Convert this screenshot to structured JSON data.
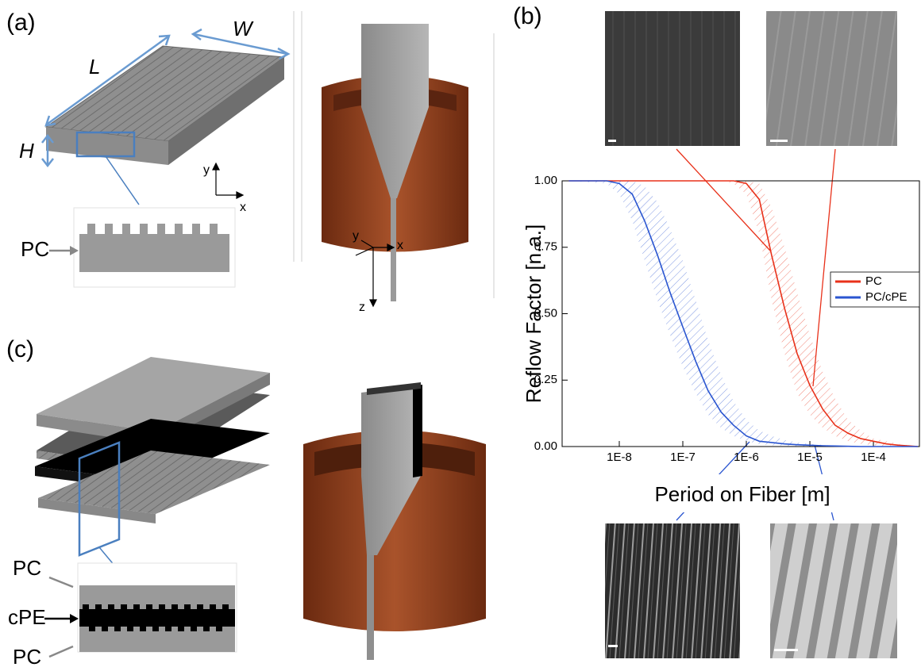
{
  "chart_data": {
    "type": "line",
    "y_label": "Reflow Factor [n.a.]",
    "x_label": "Period on Fiber [m]",
    "log_x": true,
    "x": [
      1.6e-09,
      6.3e-09,
      1e-08,
      1.6e-08,
      2.5e-08,
      4e-08,
      6.3e-08,
      1e-07,
      1.6e-07,
      2.5e-07,
      4e-07,
      6.3e-07,
      1e-06,
      1.6e-06,
      2.5e-06,
      4e-06,
      6.3e-06,
      1e-05,
      1.6e-05,
      2.5e-05,
      4e-05,
      6.3e-05,
      0.0001,
      0.00016,
      0.00025,
      0.0005
    ],
    "xlim": [
      1.26e-09,
      0.00053
    ],
    "xticks": [
      {
        "value": 1e-08,
        "label": "1E-8"
      },
      {
        "value": 1e-07,
        "label": "1E-7"
      },
      {
        "value": 1e-06,
        "label": "1E-6"
      },
      {
        "value": 1e-05,
        "label": "1E-5"
      },
      {
        "value": 0.0001,
        "label": "1E-4"
      }
    ],
    "ylim": [
      0,
      1
    ],
    "yticks": [
      {
        "value": 0,
        "label": "0.00"
      },
      {
        "value": 0.25,
        "label": "0.25"
      },
      {
        "value": 0.5,
        "label": "0.50"
      },
      {
        "value": 0.75,
        "label": "0.75"
      },
      {
        "value": 1,
        "label": "1.00"
      }
    ],
    "legend": "right",
    "series": [
      {
        "name": "PC",
        "color": "#e8311a",
        "values": [
          1,
          1,
          1,
          1,
          1,
          1,
          1,
          1,
          1,
          1,
          1,
          1,
          0.99,
          0.93,
          0.72,
          0.52,
          0.35,
          0.23,
          0.14,
          0.08,
          0.05,
          0.03,
          0.02,
          0.01,
          0.005,
          0
        ],
        "band_upper": [
          1,
          1,
          1,
          1,
          1,
          1,
          1,
          1,
          1,
          1,
          1,
          1,
          1,
          0.99,
          0.9,
          0.75,
          0.58,
          0.42,
          0.28,
          0.18,
          0.1,
          0.06,
          0.03,
          0.02,
          0.01,
          0
        ],
        "band_lower": [
          1,
          1,
          1,
          1,
          1,
          1,
          1,
          1,
          1,
          1,
          1,
          0.99,
          0.95,
          0.8,
          0.55,
          0.35,
          0.2,
          0.12,
          0.07,
          0.04,
          0.02,
          0.01,
          0.005,
          0,
          0,
          0
        ]
      },
      {
        "name": "PC/cPE",
        "color": "#2a55d0",
        "values": [
          1,
          1,
          0.99,
          0.95,
          0.85,
          0.72,
          0.58,
          0.45,
          0.32,
          0.21,
          0.13,
          0.08,
          0.04,
          0.02,
          0.015,
          0.01,
          0.007,
          0.005,
          0.003,
          0.002,
          0.001,
          0,
          0,
          0,
          0,
          0
        ],
        "band_upper": [
          1,
          1,
          1,
          1,
          0.98,
          0.92,
          0.82,
          0.7,
          0.55,
          0.4,
          0.27,
          0.17,
          0.1,
          0.06,
          0.04,
          0.025,
          0.015,
          0.01,
          0.006,
          0.003,
          0.002,
          0.001,
          0,
          0,
          0,
          0
        ],
        "band_lower": [
          1,
          0.99,
          0.95,
          0.85,
          0.7,
          0.55,
          0.42,
          0.3,
          0.2,
          0.12,
          0.07,
          0.04,
          0.02,
          0.01,
          0.005,
          0.003,
          0.002,
          0.001,
          0,
          0,
          0,
          0,
          0,
          0,
          0,
          0
        ]
      }
    ]
  },
  "panels": {
    "a": {
      "label": "(a)",
      "L": "L",
      "W": "W",
      "H": "H",
      "axis_y": "y",
      "axis_x": "x",
      "material": "PC",
      "tower_axes": [
        "y",
        "x",
        "z"
      ]
    },
    "b": {
      "label": "(b)"
    },
    "c": {
      "label": "(c)",
      "materials": [
        "PC",
        "cPE",
        "PC"
      ]
    }
  }
}
